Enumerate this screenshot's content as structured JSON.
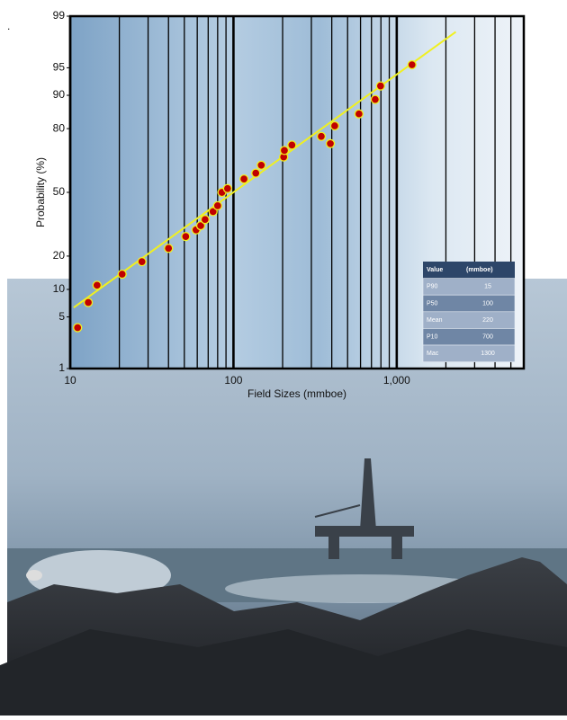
{
  "annotation": ".",
  "chart_data": {
    "type": "scatter",
    "x_label": "Field Sizes (mmboe)",
    "y_label": "Probability (%)",
    "x_scale": "log",
    "y_scale": "probability",
    "xlim": [
      10,
      6000
    ],
    "ylim": [
      1,
      99
    ],
    "xticks": [
      10,
      100,
      {
        "value": 1000,
        "label": "1,000"
      }
    ],
    "x_minor_grid": [
      20,
      30,
      40,
      50,
      60,
      70,
      80,
      90,
      200,
      300,
      400,
      500,
      600,
      700,
      800,
      900,
      2000,
      3000,
      4000,
      5000
    ],
    "yticks": [
      1,
      5,
      10,
      20,
      50,
      80,
      90,
      95,
      99
    ],
    "color": "#c00000",
    "x": [
      11.1,
      12.9,
      14.6,
      20.8,
      27.5,
      40,
      51,
      59,
      63,
      67,
      75,
      80,
      85,
      92,
      116,
      137,
      148,
      203,
      205,
      228,
      345,
      392,
      417,
      587,
      738,
      796,
      1240
    ],
    "values": [
      3.7,
      7.3,
      11,
      14,
      18,
      23,
      28,
      31,
      33,
      36,
      40,
      43,
      50,
      52,
      57,
      60,
      64,
      68,
      71,
      73.4,
      77,
      74,
      81,
      85,
      89,
      92,
      95.4
    ],
    "fit_line": {
      "color": "#f0f020",
      "x": [
        10.5,
        2300
      ],
      "values": [
        6.4,
        98.3
      ]
    }
  },
  "table": {
    "header": [
      "Value",
      "(mmboe)"
    ],
    "rows": [
      [
        "P90",
        "15"
      ],
      [
        "P50",
        "100"
      ],
      [
        "Mean",
        "220"
      ],
      [
        "P10",
        "700"
      ],
      [
        "Mac",
        "1300"
      ]
    ]
  }
}
